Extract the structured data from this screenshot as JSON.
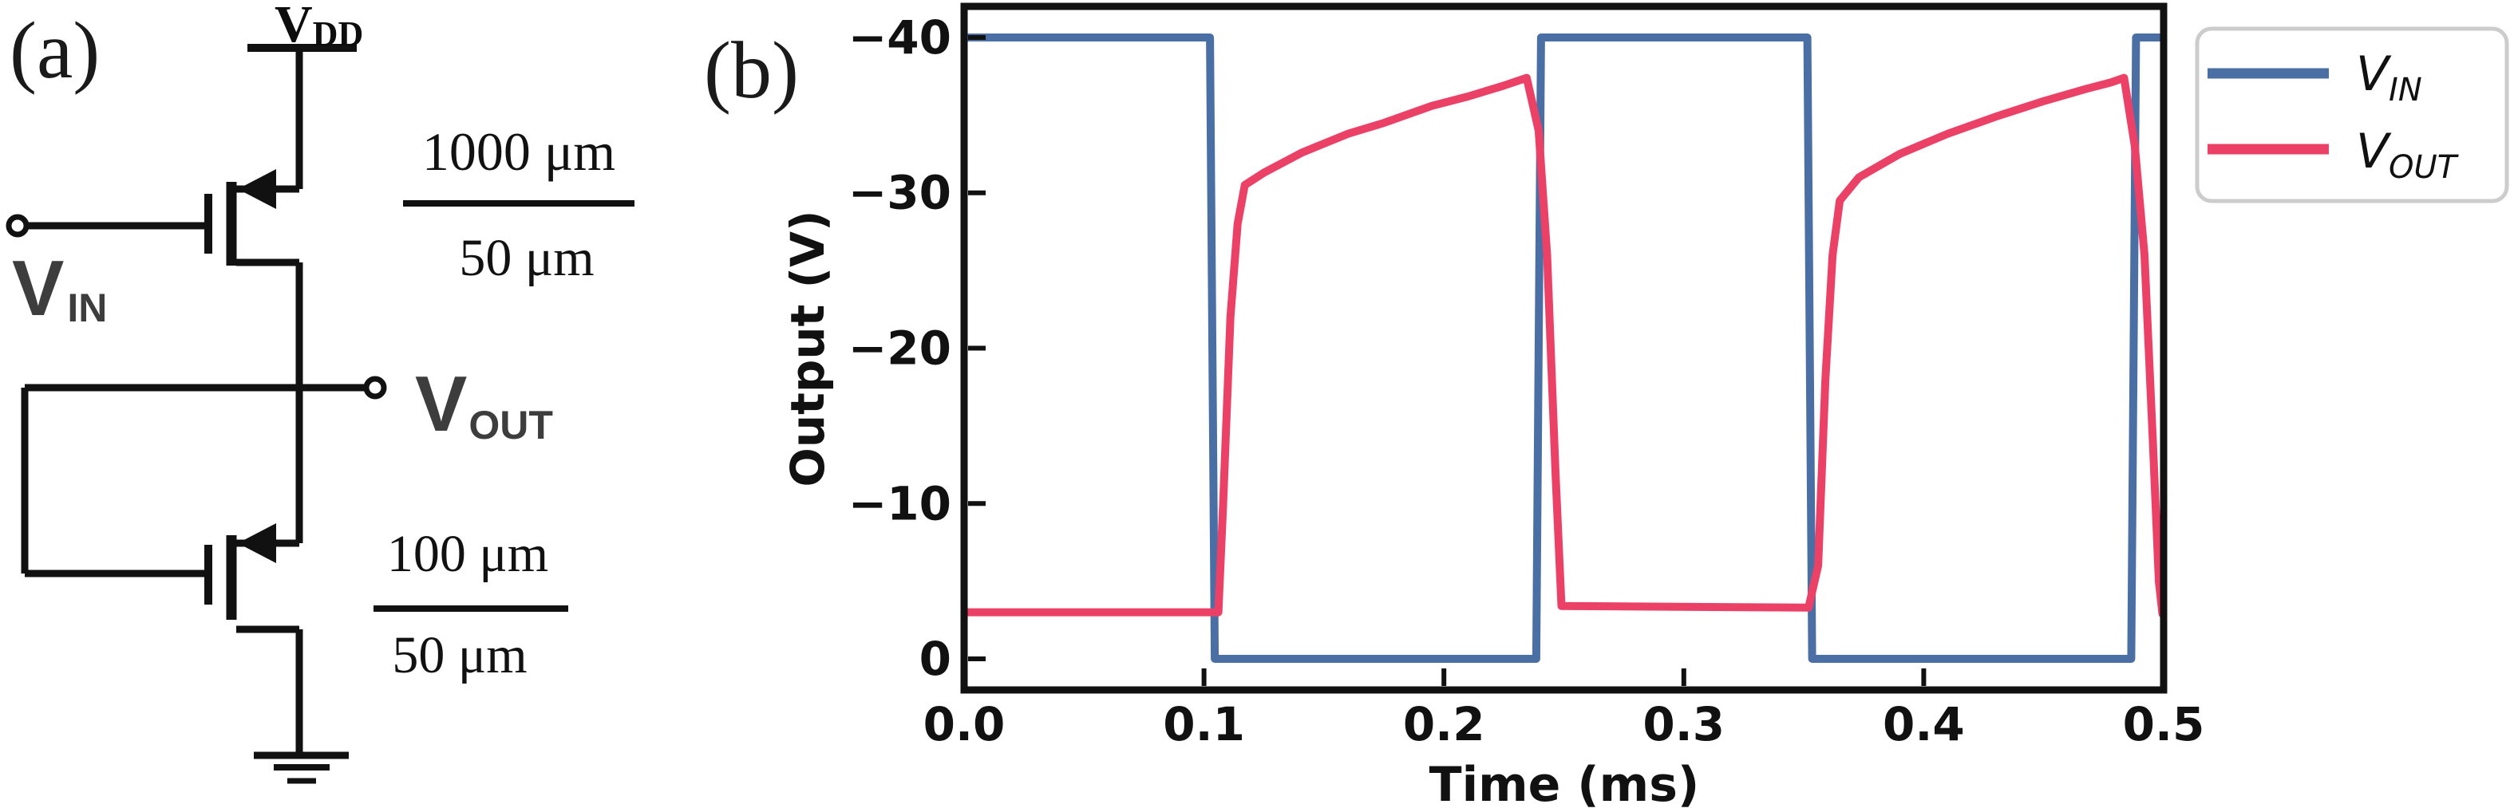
{
  "figure": {
    "panel_a_label": "(a)",
    "panel_b_label": "(b)"
  },
  "circuit": {
    "vdd": {
      "base": "V",
      "sub": "DD"
    },
    "vin": {
      "base": "V",
      "sub": "IN"
    },
    "vout": {
      "base": "V",
      "sub": "OUT"
    },
    "transistor_top_ratio": {
      "numerator": "1000 μm",
      "denominator": "50 μm"
    },
    "transistor_bottom_ratio": {
      "numerator": "100 μm",
      "denominator": "50 μm"
    },
    "wire_color": "#111111"
  },
  "chart_data": {
    "type": "line",
    "title": "",
    "xlabel": "Time (ms)",
    "ylabel": "Output (V)",
    "xlim": [
      0.0,
      0.5
    ],
    "ylim": [
      2,
      -42
    ],
    "y_axis_inverted": true,
    "grid": false,
    "xticks": [
      {
        "v": 0.0,
        "label": "0.0"
      },
      {
        "v": 0.1,
        "label": "0.1"
      },
      {
        "v": 0.2,
        "label": "0.2"
      },
      {
        "v": 0.3,
        "label": "0.3"
      },
      {
        "v": 0.4,
        "label": "0.4"
      },
      {
        "v": 0.5,
        "label": "0.5"
      }
    ],
    "yticks": [
      {
        "v": -40,
        "label": "−40"
      },
      {
        "v": -30,
        "label": "−30"
      },
      {
        "v": -20,
        "label": "−20"
      },
      {
        "v": -10,
        "label": "−10"
      },
      {
        "v": 0,
        "label": "0"
      }
    ],
    "legend": {
      "position": "outside-upper-right",
      "entries": [
        {
          "base": "V",
          "sub": "IN",
          "color": "#4a6fa5"
        },
        {
          "base": "V",
          "sub": "OUT",
          "color": "#ec4166"
        }
      ]
    },
    "series": [
      {
        "name": "V_IN",
        "color": "#4a6fa5",
        "points": [
          [
            0.0,
            -40
          ],
          [
            0.1025,
            -40
          ],
          [
            0.1045,
            0
          ],
          [
            0.2385,
            0
          ],
          [
            0.2405,
            -40
          ],
          [
            0.3515,
            -40
          ],
          [
            0.3535,
            0
          ],
          [
            0.4865,
            0
          ],
          [
            0.4885,
            -40
          ],
          [
            0.5,
            -40
          ]
        ]
      },
      {
        "name": "V_OUT",
        "color": "#ec4166",
        "points": [
          [
            0.0,
            -3
          ],
          [
            0.106,
            -3
          ],
          [
            0.108,
            -10
          ],
          [
            0.111,
            -22
          ],
          [
            0.114,
            -28
          ],
          [
            0.117,
            -30.5
          ],
          [
            0.125,
            -31.3
          ],
          [
            0.141,
            -32.6
          ],
          [
            0.16,
            -33.8
          ],
          [
            0.175,
            -34.5
          ],
          [
            0.195,
            -35.6
          ],
          [
            0.21,
            -36.2
          ],
          [
            0.225,
            -36.9
          ],
          [
            0.2345,
            -37.4
          ],
          [
            0.2395,
            -34
          ],
          [
            0.243,
            -26
          ],
          [
            0.2465,
            -12
          ],
          [
            0.249,
            -3.4
          ],
          [
            0.352,
            -3.3
          ],
          [
            0.356,
            -6
          ],
          [
            0.359,
            -18
          ],
          [
            0.362,
            -26
          ],
          [
            0.365,
            -29.5
          ],
          [
            0.373,
            -31
          ],
          [
            0.39,
            -32.5
          ],
          [
            0.41,
            -33.8
          ],
          [
            0.43,
            -34.9
          ],
          [
            0.45,
            -35.9
          ],
          [
            0.468,
            -36.7
          ],
          [
            0.478,
            -37.1
          ],
          [
            0.4835,
            -37.4
          ],
          [
            0.488,
            -33
          ],
          [
            0.492,
            -26
          ],
          [
            0.4955,
            -14
          ],
          [
            0.498,
            -5
          ],
          [
            0.4995,
            -2.9
          ],
          [
            0.5,
            -2.9
          ]
        ]
      }
    ]
  }
}
